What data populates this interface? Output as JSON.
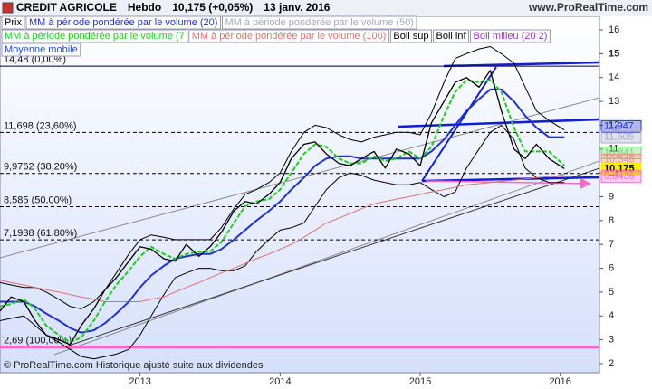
{
  "chart_data": {
    "type": "line",
    "title": "CREDIT AGRICOLE",
    "period": "Hebdo",
    "last_price": "10,175 (+0,05%)",
    "date": "13 janv. 2016",
    "source": "www.ProRealTime.com",
    "footnote": "© ProRealTime.com Historique ajusté suite aux dividendes",
    "xlim": [
      2012.0,
      2016.28
    ],
    "xticks": [
      2013,
      2014,
      2015,
      2016
    ],
    "ylim": [
      1.62,
      16.57
    ],
    "yticks": [
      2,
      3,
      4,
      5,
      6,
      7,
      8,
      9,
      10,
      11,
      12,
      13,
      14,
      15,
      16
    ],
    "x": [
      2012.0,
      2012.08,
      2012.17,
      2012.25,
      2012.33,
      2012.42,
      2012.5,
      2012.58,
      2012.67,
      2012.75,
      2012.83,
      2012.92,
      2013.0,
      2013.08,
      2013.17,
      2013.25,
      2013.33,
      2013.42,
      2013.5,
      2013.58,
      2013.67,
      2013.75,
      2013.83,
      2013.92,
      2014.0,
      2014.08,
      2014.17,
      2014.25,
      2014.33,
      2014.42,
      2014.5,
      2014.58,
      2014.67,
      2014.75,
      2014.83,
      2014.92,
      2015.0,
      2015.08,
      2015.17,
      2015.25,
      2015.33,
      2015.42,
      2015.5,
      2015.58,
      2015.67,
      2015.75,
      2015.83,
      2015.92,
      2016.03
    ],
    "series": [
      {
        "name": "Prix",
        "color": "#000000",
        "values": [
          4.2,
          4.8,
          4.6,
          3.8,
          3.2,
          3.0,
          2.8,
          3.6,
          4.3,
          5.1,
          5.6,
          6.3,
          6.9,
          6.8,
          6.4,
          6.3,
          7.0,
          6.5,
          6.9,
          7.5,
          8.4,
          8.8,
          8.7,
          9.1,
          9.6,
          10.6,
          11.2,
          11.3,
          10.8,
          10.4,
          10.3,
          10.6,
          10.9,
          10.2,
          11.0,
          10.8,
          10.3,
          12.1,
          13.0,
          13.8,
          14.0,
          13.6,
          14.3,
          12.6,
          11.0,
          10.6,
          11.2,
          10.6,
          10.175
        ]
      },
      {
        "name": "MM à période pondérée par le volume (20)",
        "color": "#2233cc",
        "values": [
          4.6,
          4.6,
          4.6,
          4.4,
          4.1,
          3.8,
          3.5,
          3.3,
          3.4,
          3.7,
          4.1,
          4.6,
          5.2,
          5.7,
          6.1,
          6.4,
          6.5,
          6.6,
          6.6,
          6.8,
          7.2,
          7.6,
          8.0,
          8.4,
          8.8,
          9.3,
          9.8,
          10.3,
          10.6,
          10.7,
          10.7,
          10.6,
          10.6,
          10.6,
          10.6,
          10.6,
          10.6,
          10.9,
          11.4,
          12.0,
          12.6,
          13.1,
          13.5,
          13.5,
          13.0,
          12.4,
          11.9,
          11.5,
          11.5
        ]
      },
      {
        "name": "MM à période pondérée par le volume (50)",
        "color": "#a8a8b8"
      },
      {
        "name": "MM à période pondérée par le volume (7",
        "color": "#22cc22",
        "values": [
          4.4,
          4.5,
          4.7,
          4.3,
          3.6,
          3.2,
          2.9,
          3.1,
          3.8,
          4.6,
          5.3,
          5.9,
          6.5,
          6.9,
          6.6,
          6.4,
          6.6,
          6.7,
          6.7,
          7.1,
          7.9,
          8.6,
          8.8,
          8.9,
          9.3,
          10.0,
          10.8,
          11.2,
          11.1,
          10.6,
          10.4,
          10.4,
          10.7,
          10.5,
          10.6,
          10.9,
          10.6,
          11.1,
          12.4,
          13.4,
          13.9,
          13.8,
          13.9,
          13.4,
          11.9,
          10.9,
          10.9,
          10.9,
          10.3
        ]
      },
      {
        "name": "MM à période pondérée par le volume (100)",
        "color": "#e07070",
        "values": [
          5.5,
          5.4,
          5.3,
          5.2,
          5.1,
          5.0,
          4.9,
          4.8,
          4.7,
          4.6,
          4.6,
          4.6,
          4.6,
          4.7,
          4.8,
          5.0,
          5.2,
          5.4,
          5.6,
          5.8,
          6.0,
          6.2,
          6.4,
          6.6,
          6.8,
          7.0,
          7.3,
          7.6,
          7.9,
          8.1,
          8.3,
          8.5,
          8.7,
          8.8,
          8.9,
          9.0,
          9.1,
          9.2,
          9.3,
          9.4,
          9.5,
          9.55,
          9.6,
          9.65,
          9.7,
          9.75,
          9.8,
          9.85,
          9.9
        ]
      },
      {
        "name": "Boll sup",
        "color": "#000000",
        "values": [
          5.4,
          5.3,
          5.2,
          5.2,
          5.0,
          4.7,
          4.4,
          4.3,
          4.6,
          5.1,
          5.8,
          6.6,
          7.2,
          7.4,
          7.3,
          7.2,
          7.2,
          7.2,
          7.2,
          7.7,
          8.5,
          9.1,
          9.3,
          9.6,
          10.0,
          10.9,
          11.7,
          12.0,
          11.9,
          11.6,
          11.4,
          11.3,
          11.5,
          11.6,
          11.7,
          11.7,
          11.6,
          12.5,
          13.8,
          14.8,
          15.0,
          15.2,
          15.3,
          15.0,
          14.6,
          13.6,
          12.6,
          12.2,
          11.8
        ]
      },
      {
        "name": "Boll inf",
        "color": "#000000",
        "values": [
          3.8,
          3.9,
          4.0,
          3.6,
          3.2,
          2.9,
          2.6,
          2.3,
          2.2,
          2.3,
          2.4,
          2.6,
          3.2,
          4.0,
          4.9,
          5.6,
          5.8,
          6.0,
          6.0,
          5.9,
          5.9,
          6.1,
          6.7,
          7.2,
          7.6,
          7.7,
          7.9,
          8.6,
          9.3,
          9.8,
          10.0,
          9.9,
          9.7,
          9.6,
          9.5,
          9.5,
          9.6,
          9.3,
          9.0,
          9.2,
          10.2,
          11.0,
          11.7,
          12.0,
          11.4,
          10.2,
          9.8,
          9.6,
          9.6
        ]
      },
      {
        "name": "Boll milieu (20 2)",
        "color": "#9933cc"
      },
      {
        "name": "Moyenne mobile",
        "color": "#1a4fd6"
      }
    ],
    "levels": [
      {
        "value": 14.48,
        "label": "14,48 (0,00%)",
        "color": "#000033"
      },
      {
        "value": 11.698,
        "label": "11,698 (23,60%)",
        "color": "#000000"
      },
      {
        "value": 9.9762,
        "label": "9,9762 (38,20%)",
        "color": "#000000"
      },
      {
        "value": 8.585,
        "label": "8,585 (50,00%)",
        "color": "#000000"
      },
      {
        "value": 7.1938,
        "label": "7,1938 (61,80%)",
        "color": "#000000"
      },
      {
        "value": 2.69,
        "label": "2,69 (100,00%)",
        "color": "#ff66cc"
      }
    ],
    "price_tags": [
      {
        "value": 11.947,
        "label": "11,947",
        "color": "#2233cc"
      },
      {
        "value": 11.505,
        "label": "11,505",
        "color": "#a8a8c8"
      },
      {
        "value": 10.841,
        "label": "10,841",
        "color": "#66dd66"
      },
      {
        "value": 10.546,
        "label": "10,546",
        "color": "#f09090"
      },
      {
        "value": 10.175,
        "label": "10,175",
        "color": "#ffee00"
      },
      {
        "value": 9.8436,
        "label": "9,8436",
        "color": "#ff66cc"
      }
    ]
  }
}
